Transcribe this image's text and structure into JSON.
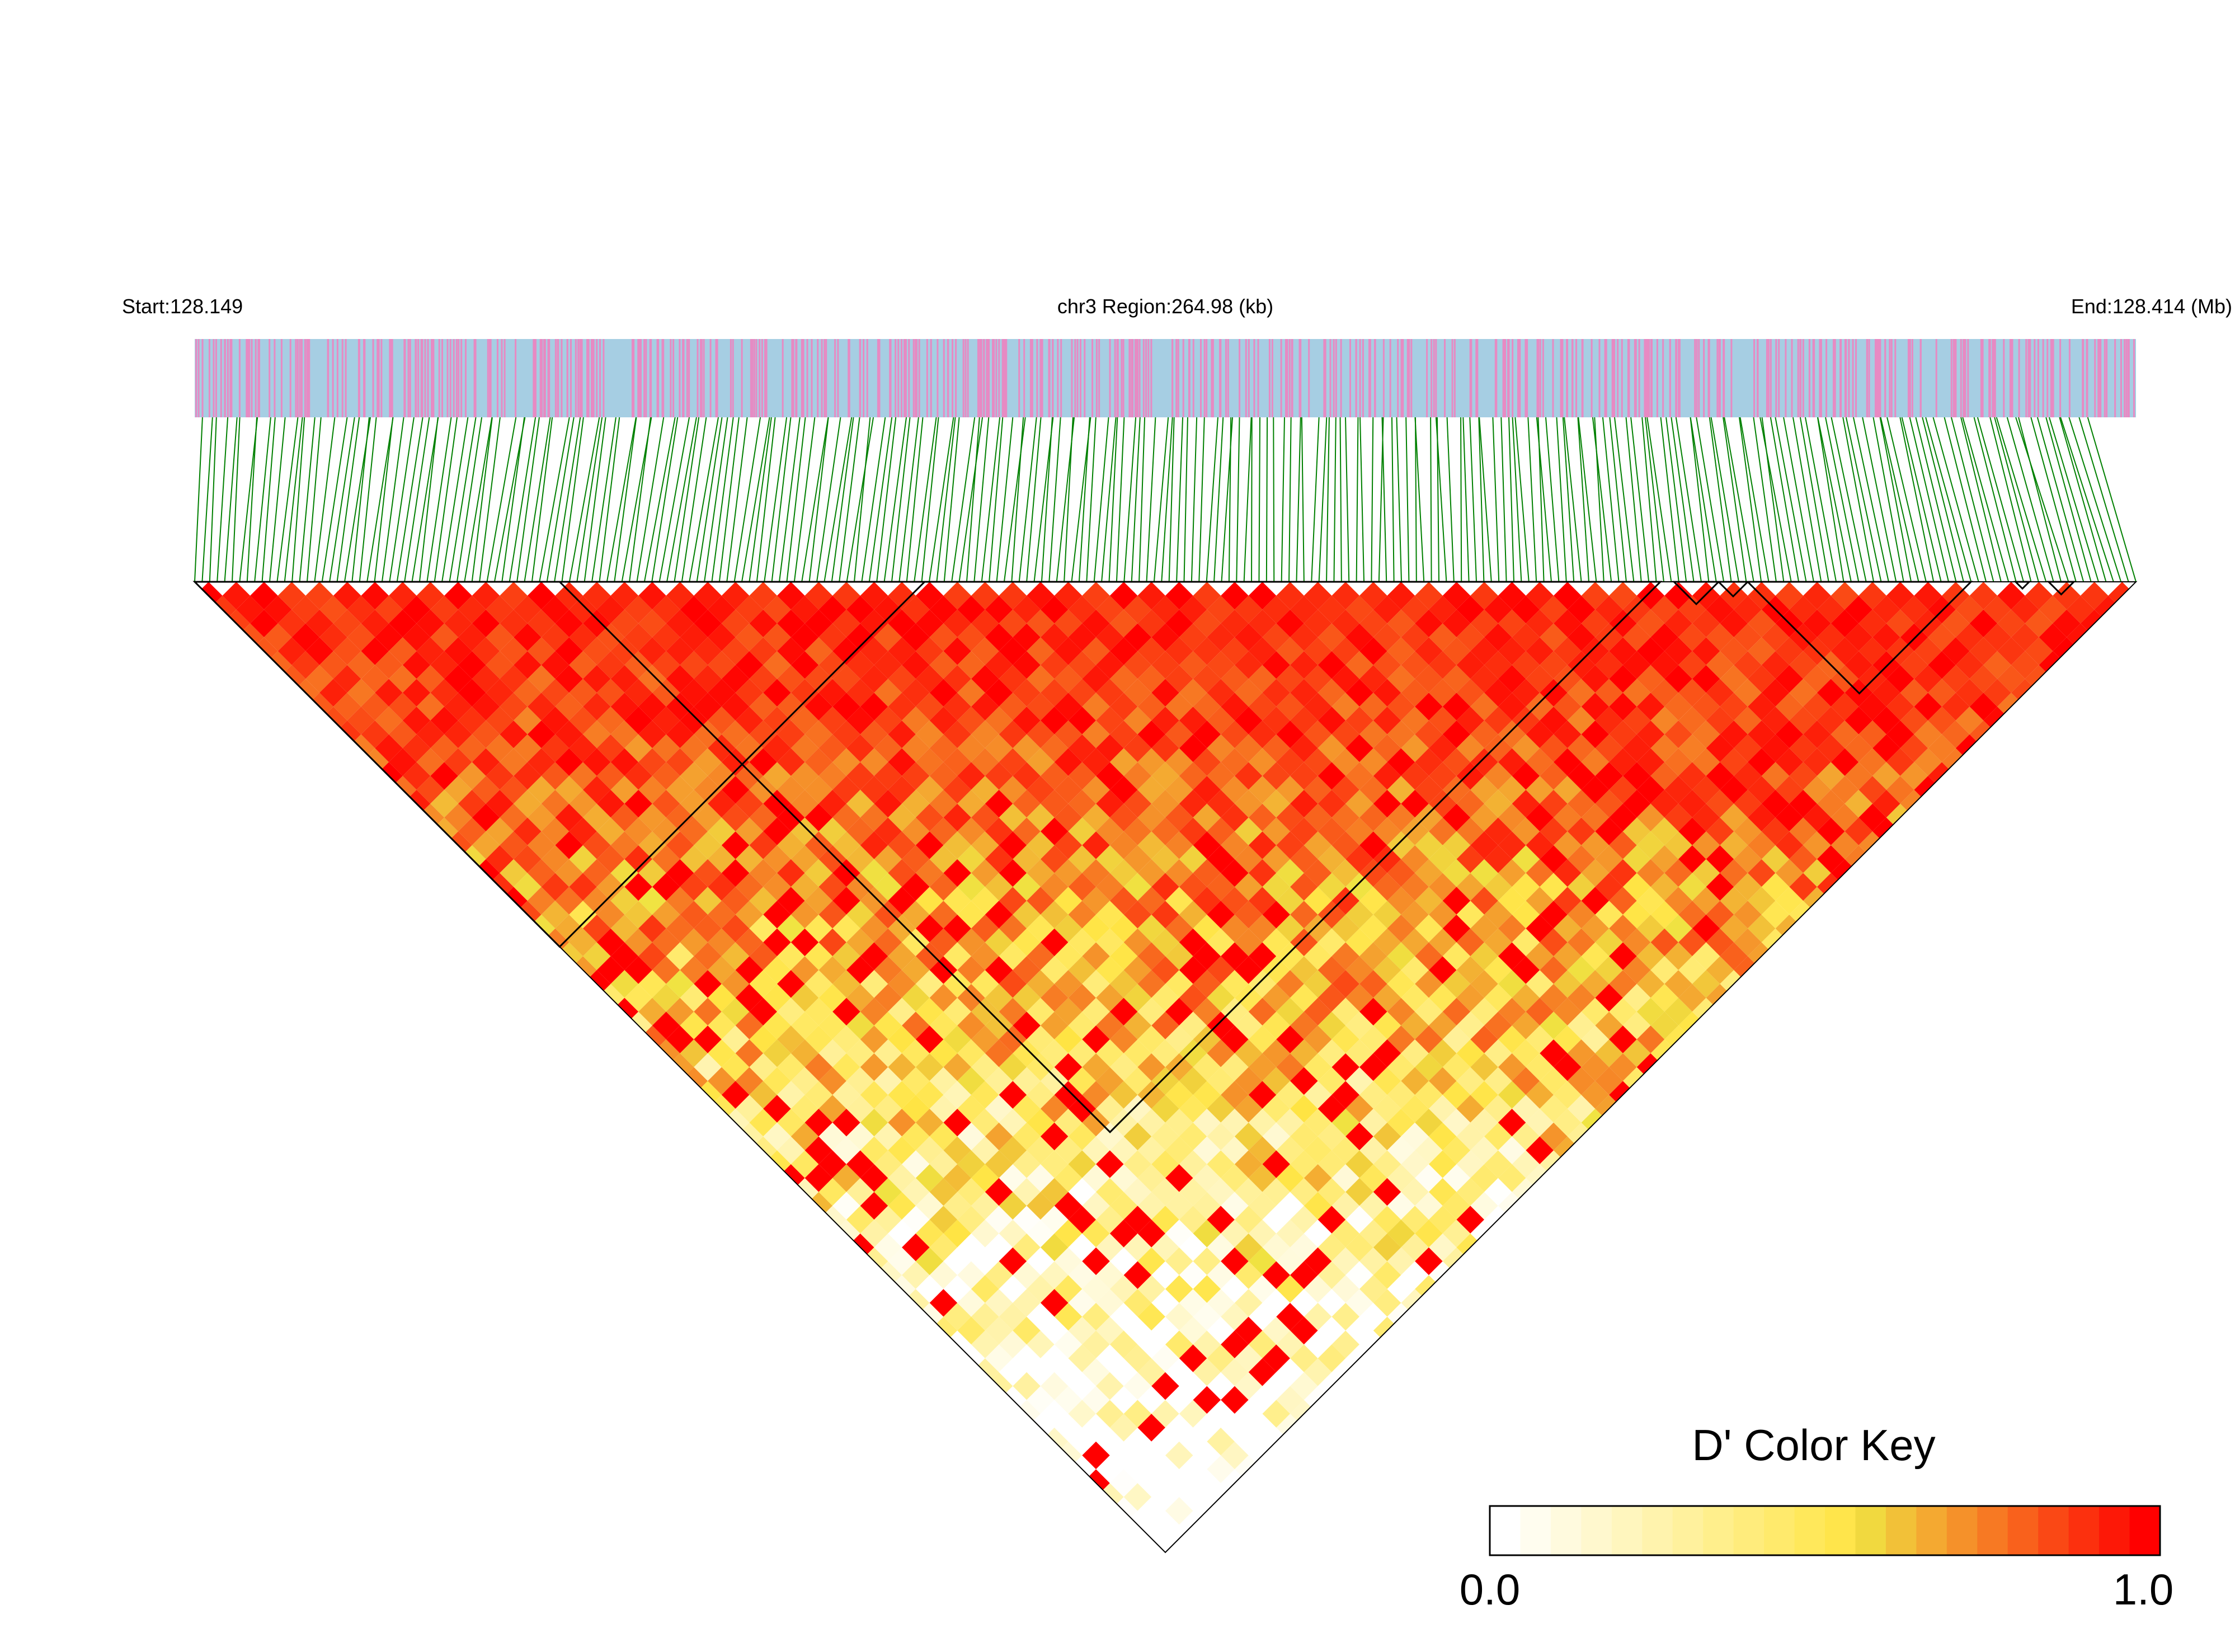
{
  "header": {
    "start_label": "Start:128.149",
    "region_label": "chr3 Region:264.98 (kb)",
    "end_label": "End:128.414 (Mb)"
  },
  "colors": {
    "track_blue": "#a6cee3",
    "track_pink": "#e78ac3",
    "connector_green": "#008000",
    "ld_high": "#ff0000",
    "ld_mid": "#f0e442",
    "ld_low": "#ffffff",
    "block_outline": "#000000"
  },
  "chart_data": {
    "type": "heatmap",
    "chromosome": "chr3",
    "region_start_mb": 128.149,
    "region_end_mb": 128.414,
    "region_length_kb": 264.98,
    "haplotype_blocks": [
      {
        "snp_start_frac": 0.0,
        "snp_end_frac": 0.376
      },
      {
        "snp_start_frac": 0.188,
        "snp_end_frac": 0.755
      },
      {
        "snp_start_frac": 0.762,
        "snp_end_frac": 0.785
      },
      {
        "snp_start_frac": 0.785,
        "snp_end_frac": 0.8
      },
      {
        "snp_start_frac": 0.8,
        "snp_end_frac": 0.915
      },
      {
        "snp_start_frac": 0.938,
        "snp_end_frac": 0.945
      },
      {
        "snp_start_frac": 0.955,
        "snp_end_frac": 0.968
      }
    ],
    "color_key": {
      "title": "D' Color Key",
      "min_label": "0.0",
      "max_label": "1.0",
      "min": 0.0,
      "max": 1.0,
      "steps": 22
    }
  }
}
